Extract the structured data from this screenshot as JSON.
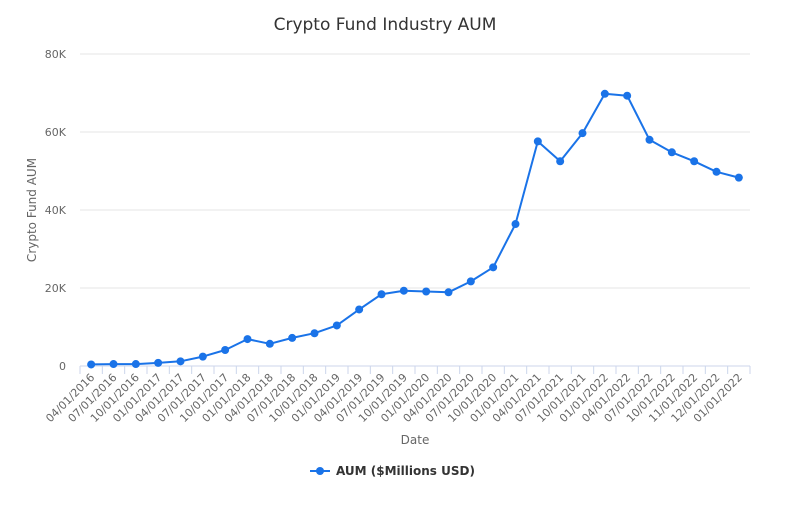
{
  "chart_data": {
    "type": "line",
    "title": "Crypto Fund Industry AUM",
    "xlabel": "Date",
    "ylabel": "Crypto Fund AUM",
    "ylim": [
      0,
      80000
    ],
    "yticks": [
      "0",
      "20K",
      "40K",
      "60K",
      "80K"
    ],
    "ytick_values": [
      0,
      20000,
      40000,
      60000,
      80000
    ],
    "grid": true,
    "legend_position": "bottom-center",
    "color": "#1a73e8",
    "x": [
      "04/01/2016",
      "07/01/2016",
      "10/01/2016",
      "01/01/2017",
      "04/01/2017",
      "07/01/2017",
      "10/01/2017",
      "01/01/2018",
      "04/01/2018",
      "07/01/2018",
      "10/01/2018",
      "01/01/2019",
      "04/01/2019",
      "07/01/2019",
      "10/01/2019",
      "01/01/2020",
      "04/01/2020",
      "07/01/2020",
      "10/01/2020",
      "01/01/2021",
      "04/01/2021",
      "07/01/2021",
      "10/01/2021",
      "01/01/2022",
      "04/01/2022",
      "07/01/2022",
      "10/01/2022",
      "11/01/2022",
      "12/01/2022",
      "01/01/2022"
    ],
    "series": [
      {
        "name": "AUM ($Millions USD)",
        "values": [
          400,
          500,
          500,
          800,
          1200,
          2400,
          4100,
          6900,
          5700,
          7200,
          8400,
          10400,
          14500,
          18400,
          19300,
          19100,
          18900,
          21700,
          25300,
          36400,
          57600,
          52500,
          59700,
          69800,
          69300,
          58000,
          54800,
          52500,
          49800,
          48300
        ]
      }
    ]
  }
}
